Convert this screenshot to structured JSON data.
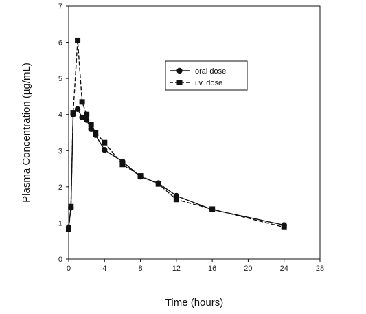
{
  "chart_data": {
    "type": "line",
    "xlabel": "Time (hours)",
    "ylabel": "Plasma Concentration (µg/mL)",
    "xlim": [
      0,
      28
    ],
    "ylim": [
      0,
      7
    ],
    "xticks": [
      0,
      4,
      8,
      12,
      16,
      20,
      24,
      28
    ],
    "yticks": [
      0,
      1,
      2,
      3,
      4,
      5,
      6,
      7
    ],
    "grid": false,
    "legend_position": "upper-center-right",
    "series": [
      {
        "name": "oral dose",
        "marker": "circle",
        "line_style": "solid",
        "color": "#111111",
        "x": [
          0,
          0.25,
          0.5,
          1,
          1.5,
          2,
          2.5,
          3,
          4,
          6,
          8,
          10,
          12,
          16,
          24
        ],
        "y": [
          0.88,
          1.42,
          4.0,
          4.15,
          3.92,
          3.85,
          3.6,
          3.43,
          3.02,
          2.7,
          2.28,
          2.1,
          1.75,
          1.37,
          0.94
        ]
      },
      {
        "name": "i.v. dose",
        "marker": "square",
        "line_style": "dashed",
        "color": "#111111",
        "x": [
          0,
          0.25,
          0.5,
          1,
          1.5,
          2,
          2.5,
          3,
          4,
          6,
          8,
          10,
          12,
          16,
          24
        ],
        "y": [
          0.82,
          1.45,
          4.05,
          6.05,
          4.35,
          4.0,
          3.72,
          3.5,
          3.22,
          2.62,
          2.3,
          2.08,
          1.65,
          1.38,
          0.88
        ]
      }
    ]
  }
}
